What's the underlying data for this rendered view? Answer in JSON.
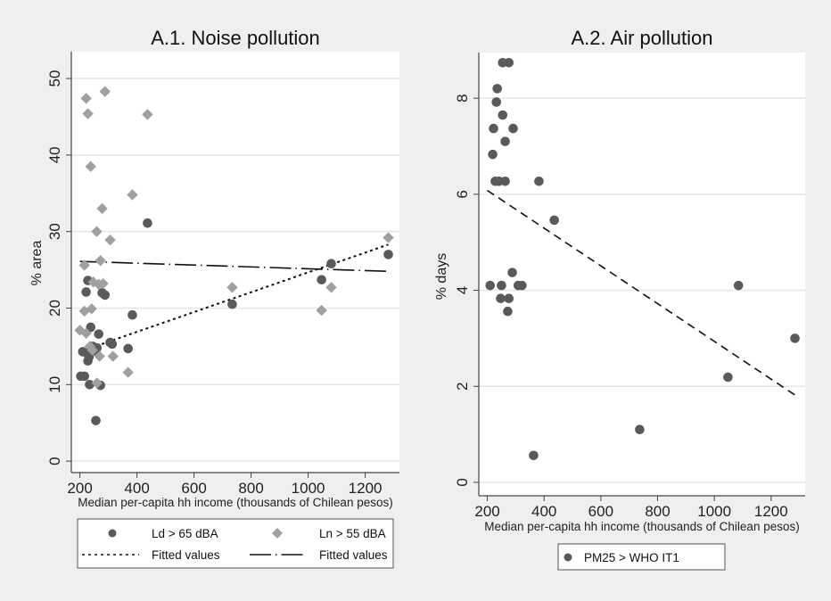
{
  "chart_data": [
    {
      "type": "scatter",
      "title": "A.1. Noise pollution",
      "xlabel": "Median per-capita hh income (thousands of Chilean pesos)",
      "ylabel": "% area",
      "xlim": [
        170,
        1320
      ],
      "ylim": [
        -1.5,
        53.5
      ],
      "xticks": [
        200,
        400,
        600,
        800,
        1000,
        1200
      ],
      "yticks": [
        0,
        10,
        20,
        30,
        40,
        50
      ],
      "grid": true,
      "legend_position": "bottom",
      "series": [
        {
          "name": "Ld > 65 dBA",
          "marker": "circle",
          "color": "#5a5a5a",
          "points": [
            [
              228,
              23.6
            ],
            [
              222,
              22.1
            ],
            [
              278,
              22.0
            ],
            [
              288,
              21.7
            ],
            [
              384,
              19.1
            ],
            [
              238,
              17.5
            ],
            [
              266,
              16.6
            ],
            [
              306,
              15.5
            ],
            [
              313,
              15.3
            ],
            [
              369,
              14.7
            ],
            [
              210,
              14.3
            ],
            [
              228,
              14.0
            ],
            [
              254,
              14.4
            ],
            [
              260,
              14.8
            ],
            [
              228,
              13.1
            ],
            [
              216,
              11.1
            ],
            [
              203,
              11.1
            ],
            [
              234,
              10.0
            ],
            [
              272,
              9.9
            ],
            [
              256,
              5.3
            ],
            [
              437,
              31.1
            ],
            [
              734,
              20.5
            ],
            [
              1047,
              23.7
            ],
            [
              1081,
              25.8
            ],
            [
              1281,
              27.0
            ],
            [
              245,
              15.0
            ],
            [
              232,
              13.6
            ]
          ]
        },
        {
          "name": "Ln > 55 dBA",
          "marker": "diamond",
          "color": "#a0a0a0",
          "points": [
            [
              222,
              47.4
            ],
            [
              288,
              48.3
            ],
            [
              228,
              45.4
            ],
            [
              437,
              45.3
            ],
            [
              238,
              38.5
            ],
            [
              384,
              34.8
            ],
            [
              278,
              33.0
            ],
            [
              259,
              30.0
            ],
            [
              306,
              28.9
            ],
            [
              272,
              26.2
            ],
            [
              216,
              25.6
            ],
            [
              247,
              23.4
            ],
            [
              266,
              23.1
            ],
            [
              281,
              23.2
            ],
            [
              216,
              19.6
            ],
            [
              241,
              19.9
            ],
            [
              200,
              17.1
            ],
            [
              222,
              16.7
            ],
            [
              244,
              14.5
            ],
            [
              269,
              13.7
            ],
            [
              316,
              13.7
            ],
            [
              369,
              11.6
            ],
            [
              260,
              10.2
            ],
            [
              734,
              22.7
            ],
            [
              1047,
              19.7
            ],
            [
              1081,
              22.7
            ],
            [
              1281,
              29.2
            ],
            [
              235,
              15.0
            ]
          ]
        },
        {
          "name": "Fitted values",
          "type": "line",
          "style": "dotted",
          "fits": "Ld > 65 dBA",
          "points": [
            [
              200,
              14.3
            ],
            [
              1281,
              28.3
            ]
          ]
        },
        {
          "name": "Fitted values",
          "type": "line",
          "style": "dash-dot",
          "fits": "Ln > 55 dBA",
          "points": [
            [
              200,
              26.1
            ],
            [
              1281,
              24.8
            ]
          ]
        }
      ],
      "legend": [
        {
          "label": "Ld > 65 dBA",
          "symbol": "circle"
        },
        {
          "label": "Ln > 55 dBA",
          "symbol": "diamond"
        },
        {
          "label": "Fitted values",
          "symbol": "dotted"
        },
        {
          "label": "Fitted values",
          "symbol": "dash-dot"
        }
      ]
    },
    {
      "type": "scatter",
      "title": "A.2. Air pollution",
      "xlabel": "Median per-capita hh income (thousands of Chilean pesos)",
      "ylabel": "% days",
      "xlim": [
        170,
        1320
      ],
      "ylim": [
        -0.28,
        8.95
      ],
      "xticks": [
        200,
        400,
        600,
        800,
        1000,
        1200
      ],
      "yticks": [
        0,
        2,
        4,
        6,
        8
      ],
      "grid": true,
      "legend_position": "bottom",
      "series": [
        {
          "name": "PM25 > WHO IT1",
          "marker": "circle",
          "color": "#5a5a5a",
          "points": [
            [
              254,
              8.74
            ],
            [
              276,
              8.74
            ],
            [
              235,
              8.2
            ],
            [
              232,
              7.92
            ],
            [
              254,
              7.65
            ],
            [
              222,
              7.37
            ],
            [
              291,
              7.37
            ],
            [
              263,
              7.1
            ],
            [
              219,
              6.83
            ],
            [
              228,
              6.27
            ],
            [
              241,
              6.27
            ],
            [
              263,
              6.27
            ],
            [
              382,
              6.27
            ],
            [
              436,
              5.46
            ],
            [
              288,
              4.37
            ],
            [
              210,
              4.1
            ],
            [
              250,
              4.1
            ],
            [
              309,
              4.1
            ],
            [
              322,
              4.1
            ],
            [
              247,
              3.83
            ],
            [
              276,
              3.83
            ],
            [
              272,
              3.56
            ],
            [
              363,
              0.56
            ],
            [
              737,
              1.1
            ],
            [
              1048,
              2.19
            ],
            [
              1085,
              4.1
            ],
            [
              1284,
              3.0
            ]
          ]
        },
        {
          "name": "Fitted values",
          "type": "line",
          "style": "dashed",
          "fits": "PM25 > WHO IT1",
          "points": [
            [
              200,
              6.08
            ],
            [
              1284,
              1.82
            ]
          ]
        }
      ],
      "legend": [
        {
          "label": "PM25 > WHO IT1",
          "symbol": "circle"
        }
      ]
    }
  ]
}
